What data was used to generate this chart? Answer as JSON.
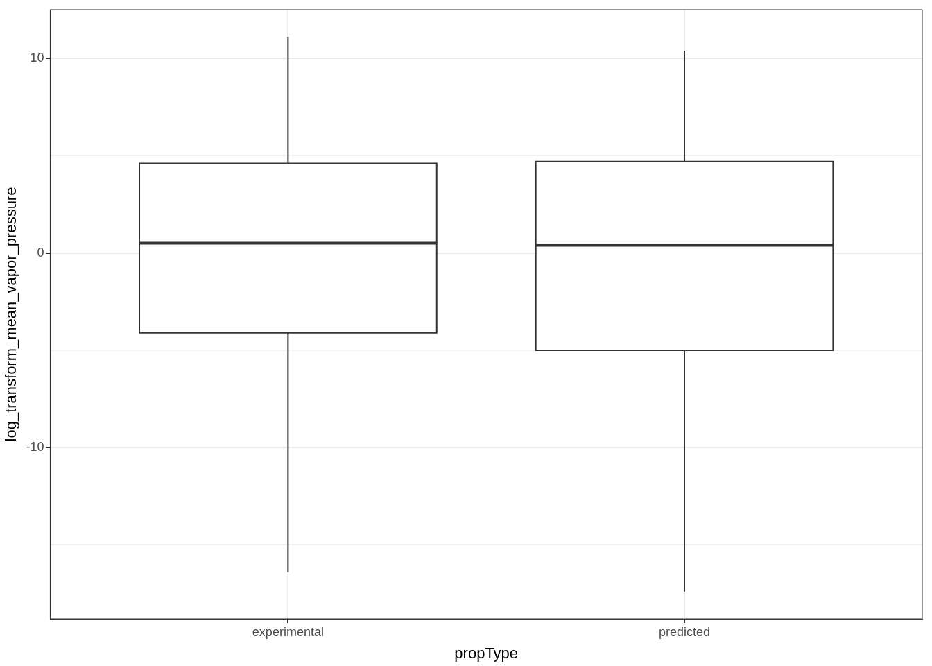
{
  "chart_data": {
    "type": "box",
    "xlabel": "propType",
    "ylabel": "log_transform_mean_vapor_pressure",
    "categories": [
      "experimental",
      "predicted"
    ],
    "boxes": [
      {
        "low": -16.4,
        "q1": -4.1,
        "median": 0.5,
        "q3": 4.6,
        "high": 11.1
      },
      {
        "low": -17.4,
        "q1": -5.0,
        "median": 0.4,
        "q3": 4.7,
        "high": 10.4
      }
    ],
    "ylim": [
      -18.8,
      12.5
    ],
    "yticks": [
      {
        "value": -15,
        "label": null
      },
      -10,
      {
        "value": -5,
        "label": null
      },
      0,
      {
        "value": 5,
        "label": null
      },
      10
    ],
    "grid": true
  }
}
